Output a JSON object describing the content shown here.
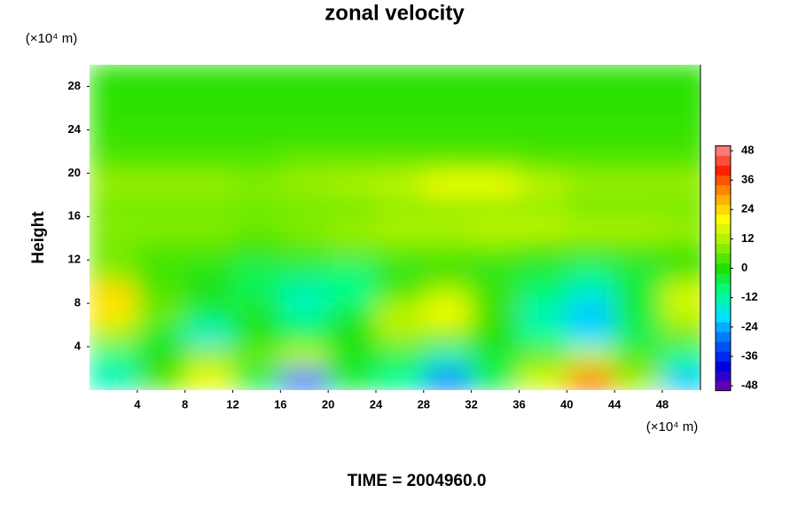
{
  "chart_data": {
    "type": "contour",
    "title": "zonal velocity",
    "y_label": "Height",
    "y_unit": "(×10⁴ m)",
    "x_unit": "(×10⁴ m)",
    "annotation": "TIME = 2004960.0",
    "x": [
      2,
      6,
      10,
      14,
      18,
      22,
      26,
      30,
      34,
      38,
      42,
      46,
      50
    ],
    "y": [
      1,
      3,
      5,
      7,
      9,
      11,
      13,
      15,
      17,
      19,
      21,
      23,
      25,
      27,
      29
    ],
    "z": [
      [
        -14,
        4,
        18,
        -5,
        -30,
        -4,
        -10,
        -28,
        -6,
        16,
        34,
        10,
        -22
      ],
      [
        -10,
        0,
        10,
        6,
        14,
        -2,
        -6,
        -14,
        -4,
        6,
        14,
        4,
        -10
      ],
      [
        10,
        -4,
        -16,
        -2,
        -6,
        0,
        10,
        8,
        0,
        -10,
        -20,
        -6,
        6
      ],
      [
        22,
        6,
        -6,
        -2,
        -12,
        -4,
        14,
        20,
        2,
        -14,
        -22,
        -4,
        14
      ],
      [
        24,
        4,
        0,
        -6,
        -14,
        -10,
        4,
        12,
        2,
        -8,
        -16,
        -4,
        16
      ],
      [
        8,
        2,
        -2,
        -6,
        -6,
        -8,
        -2,
        0,
        -2,
        -4,
        -8,
        -4,
        2
      ],
      [
        6,
        4,
        4,
        2,
        4,
        6,
        6,
        6,
        6,
        4,
        4,
        4,
        4
      ],
      [
        8,
        8,
        8,
        6,
        8,
        10,
        12,
        12,
        14,
        14,
        12,
        12,
        10
      ],
      [
        6,
        6,
        6,
        6,
        6,
        6,
        8,
        8,
        8,
        8,
        6,
        6,
        6
      ],
      [
        10,
        10,
        10,
        8,
        10,
        12,
        14,
        20,
        20,
        14,
        10,
        10,
        10
      ],
      [
        4,
        4,
        4,
        4,
        6,
        6,
        6,
        6,
        6,
        4,
        4,
        4,
        4
      ],
      [
        2,
        2,
        2,
        2,
        2,
        2,
        2,
        2,
        2,
        2,
        2,
        2,
        2
      ],
      [
        1,
        1,
        1,
        1,
        1,
        1,
        1,
        1,
        1,
        1,
        1,
        1,
        1
      ],
      [
        1,
        1,
        1,
        1,
        1,
        1,
        1,
        1,
        1,
        1,
        1,
        1,
        1
      ],
      [
        0,
        0,
        0,
        0,
        0,
        0,
        0,
        0,
        0,
        0,
        0,
        0,
        0
      ]
    ],
    "xlim": [
      0,
      51.2
    ],
    "xticks": [
      4,
      8,
      12,
      16,
      20,
      24,
      28,
      32,
      36,
      40,
      44,
      48
    ],
    "ylim": [
      0,
      30
    ],
    "yticks": [
      4,
      8,
      12,
      16,
      20,
      24,
      28
    ],
    "zlim": [
      -50,
      50
    ],
    "zticks": [
      48,
      36,
      24,
      12,
      0,
      -12,
      -24,
      -36,
      -48
    ],
    "colormap": [
      "#7a00a8",
      "#0000e6",
      "#0064ff",
      "#00e0ff",
      "#00ff90",
      "#20e000",
      "#a0f000",
      "#ffff00",
      "#ffa000",
      "#ff2000",
      "#ff9090"
    ]
  }
}
